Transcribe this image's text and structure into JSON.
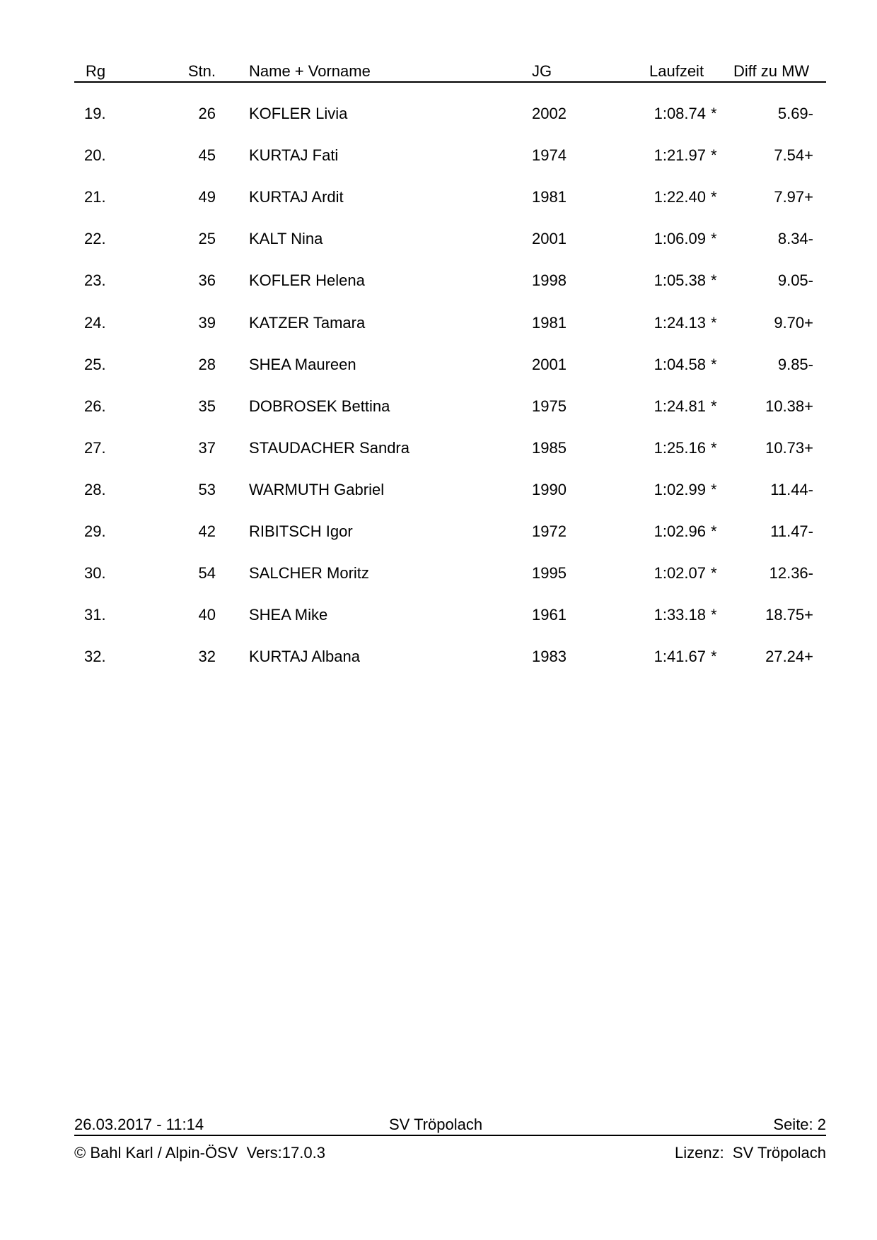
{
  "header": {
    "rank": "Rg",
    "start_no": "Stn.",
    "name": "Name + Vorname",
    "year": "JG",
    "time": "Laufzeit",
    "diff": "Diff zu MW"
  },
  "rows": [
    {
      "rank": "19.",
      "start_no": "26",
      "name": "KOFLER Livia",
      "year": "2002",
      "time": "1:08.74",
      "mark": "*",
      "diff": "5.69-"
    },
    {
      "rank": "20.",
      "start_no": "45",
      "name": "KURTAJ Fati",
      "year": "1974",
      "time": "1:21.97",
      "mark": "*",
      "diff": "7.54+"
    },
    {
      "rank": "21.",
      "start_no": "49",
      "name": "KURTAJ Ardit",
      "year": "1981",
      "time": "1:22.40",
      "mark": "*",
      "diff": "7.97+"
    },
    {
      "rank": "22.",
      "start_no": "25",
      "name": "KALT Nina",
      "year": "2001",
      "time": "1:06.09",
      "mark": "*",
      "diff": "8.34-"
    },
    {
      "rank": "23.",
      "start_no": "36",
      "name": "KOFLER Helena",
      "year": "1998",
      "time": "1:05.38",
      "mark": "*",
      "diff": "9.05-"
    },
    {
      "rank": "24.",
      "start_no": "39",
      "name": "KATZER Tamara",
      "year": "1981",
      "time": "1:24.13",
      "mark": "*",
      "diff": "9.70+"
    },
    {
      "rank": "25.",
      "start_no": "28",
      "name": "SHEA Maureen",
      "year": "2001",
      "time": "1:04.58",
      "mark": "*",
      "diff": "9.85-"
    },
    {
      "rank": "26.",
      "start_no": "35",
      "name": "DOBROSEK Bettina",
      "year": "1975",
      "time": "1:24.81",
      "mark": "*",
      "diff": "10.38+"
    },
    {
      "rank": "27.",
      "start_no": "37",
      "name": "STAUDACHER Sandra",
      "year": "1985",
      "time": "1:25.16",
      "mark": "*",
      "diff": "10.73+"
    },
    {
      "rank": "28.",
      "start_no": "53",
      "name": "WARMUTH Gabriel",
      "year": "1990",
      "time": "1:02.99",
      "mark": "*",
      "diff": "11.44-"
    },
    {
      "rank": "29.",
      "start_no": "42",
      "name": "RIBITSCH Igor",
      "year": "1972",
      "time": "1:02.96",
      "mark": "*",
      "diff": "11.47-"
    },
    {
      "rank": "30.",
      "start_no": "54",
      "name": "SALCHER Moritz",
      "year": "1995",
      "time": "1:02.07",
      "mark": "*",
      "diff": "12.36-"
    },
    {
      "rank": "31.",
      "start_no": "40",
      "name": "SHEA Mike",
      "year": "1961",
      "time": "1:33.18",
      "mark": "*",
      "diff": "18.75+"
    },
    {
      "rank": "32.",
      "start_no": "32",
      "name": "KURTAJ Albana",
      "year": "1983",
      "time": "1:41.67",
      "mark": "*",
      "diff": "27.24+"
    }
  ],
  "footer": {
    "datetime": "26.03.2017 - 11:14",
    "club": "SV Tröpolach",
    "page": "Seite: 2",
    "copyright": "© Bahl Karl / Alpin-ÖSV  Vers:17.0.3",
    "license": "Lizenz:  SV Tröpolach"
  }
}
